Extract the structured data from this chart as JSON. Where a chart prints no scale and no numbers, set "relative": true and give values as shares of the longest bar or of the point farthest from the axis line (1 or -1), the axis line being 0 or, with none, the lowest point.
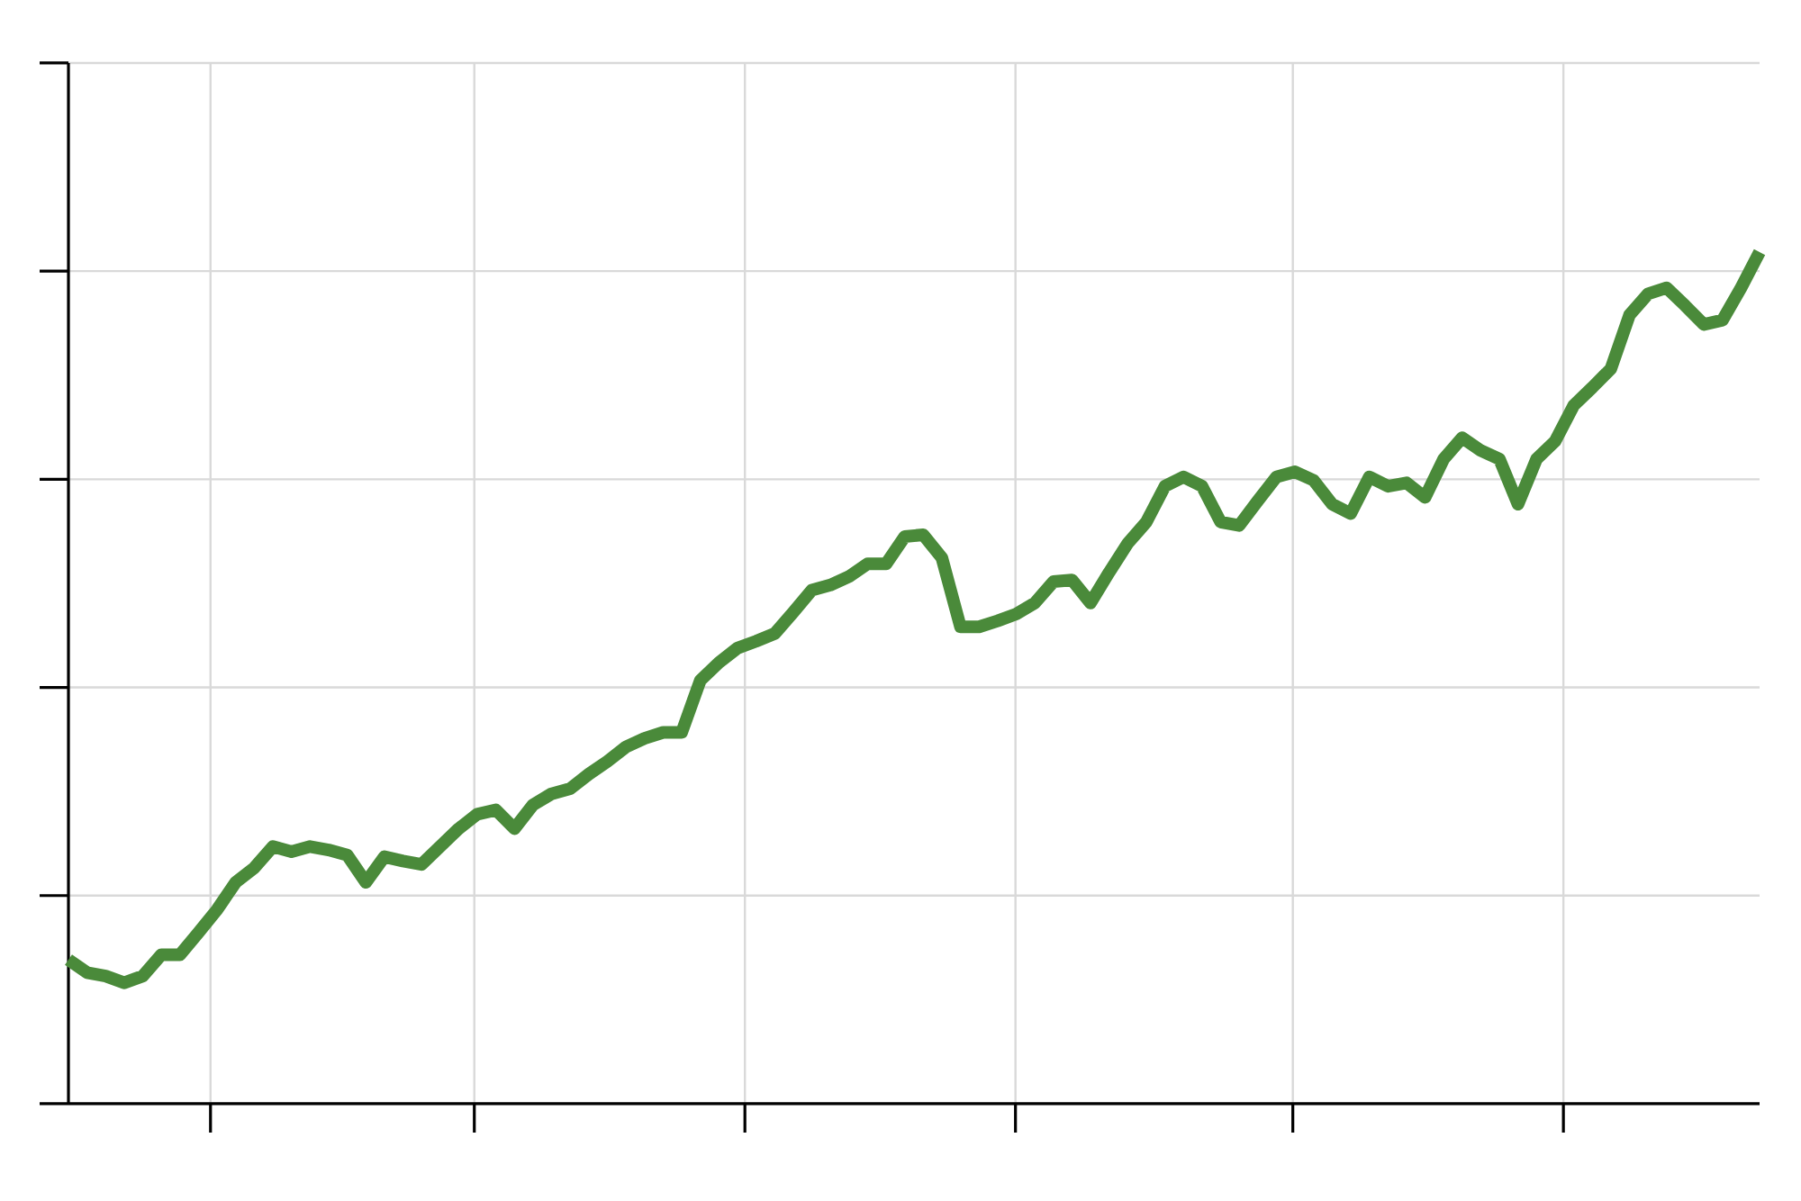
{
  "chart_data": {
    "type": "line",
    "relative": true,
    "grid": true,
    "color": "#4a8a3a",
    "categories": [
      null,
      null,
      null,
      null,
      null,
      null,
      null,
      null,
      null,
      null,
      null,
      null,
      null,
      null,
      null,
      null,
      null,
      null,
      null,
      null,
      null,
      null,
      null,
      null,
      null,
      null,
      null,
      null,
      null,
      null,
      null,
      null,
      null,
      null,
      null,
      null,
      null,
      null,
      null,
      null,
      null,
      null,
      null,
      null,
      null,
      null,
      null,
      null,
      null,
      null,
      null,
      null,
      null,
      null,
      null,
      null,
      null,
      null,
      null,
      null,
      null,
      null,
      null,
      null,
      null,
      null,
      null,
      null,
      null,
      null,
      null,
      null,
      null,
      null,
      null,
      null,
      null,
      null,
      null,
      null,
      null,
      null,
      null,
      null,
      null,
      null,
      null,
      null,
      null,
      null,
      null,
      null
    ],
    "values": [
      0.169,
      0.154,
      0.15,
      0.142,
      0.15,
      0.175,
      0.175,
      0.201,
      0.228,
      0.26,
      0.277,
      0.302,
      0.296,
      0.302,
      0.298,
      0.292,
      0.26,
      0.29,
      0.285,
      0.281,
      0.302,
      0.323,
      0.34,
      0.345,
      0.323,
      0.351,
      0.364,
      0.37,
      0.387,
      0.402,
      0.419,
      0.429,
      0.436,
      0.436,
      0.497,
      0.518,
      0.535,
      0.543,
      0.552,
      0.577,
      0.603,
      0.609,
      0.619,
      0.634,
      0.634,
      0.666,
      0.668,
      0.641,
      0.56,
      0.56,
      0.567,
      0.575,
      0.588,
      0.613,
      0.615,
      0.588,
      0.624,
      0.658,
      0.683,
      0.725,
      0.736,
      0.725,
      0.683,
      0.679,
      0.708,
      0.736,
      0.742,
      0.732,
      0.704,
      0.693,
      0.736,
      0.725,
      0.729,
      0.712,
      0.757,
      0.782,
      0.767,
      0.757,
      0.704,
      0.757,
      0.778,
      0.82,
      0.841,
      0.863,
      0.926,
      0.951,
      0.958,
      0.937,
      0.915,
      0.92,
      0.958,
      1
    ]
  }
}
